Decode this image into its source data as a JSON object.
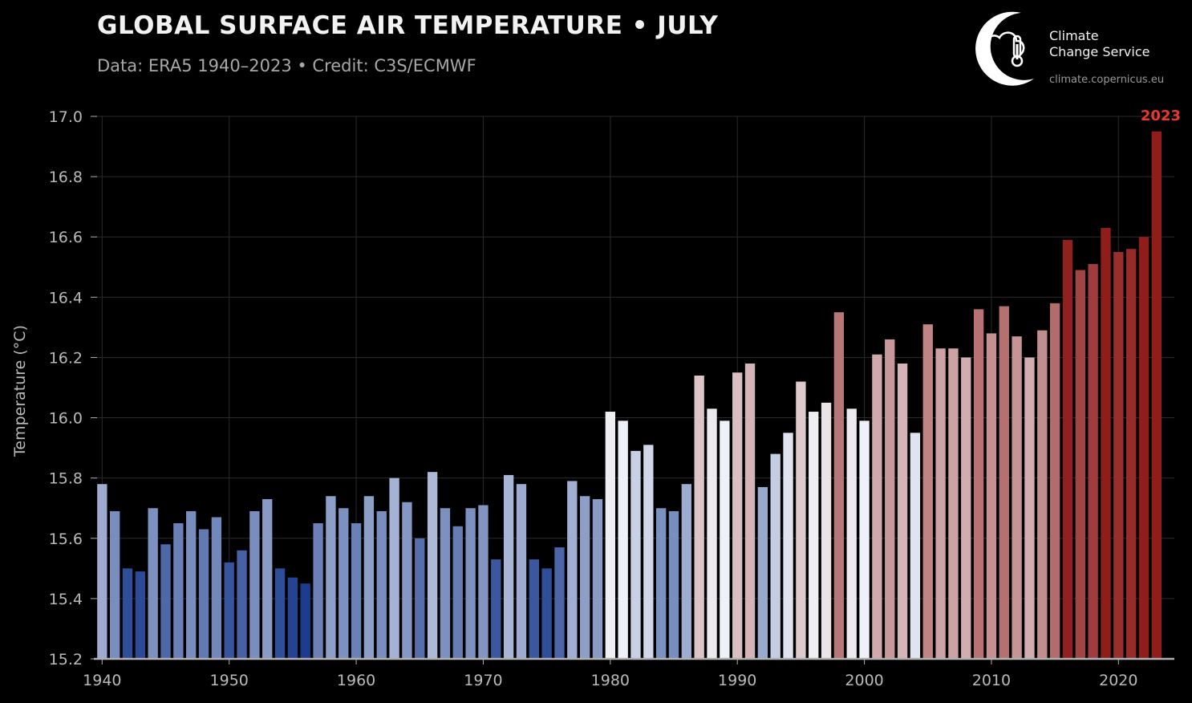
{
  "header": {
    "title": "GLOBAL SURFACE AIR TEMPERATURE • JULY",
    "subtitle": "Data: ERA5 1940–2023 • Credit: C3S/ECMWF"
  },
  "logo": {
    "name": "Climate\nChange Service",
    "url": "climate.copernicus.eu",
    "icon": "cloud-thermometer-icon"
  },
  "chart_data": {
    "type": "bar",
    "title": "GLOBAL SURFACE AIR TEMPERATURE • JULY",
    "subtitle": "Data: ERA5 1940–2023 • Credit: C3S/ECMWF",
    "ylabel": "Temperature (°C)",
    "xlabel": "",
    "ylim": [
      15.2,
      17.0
    ],
    "xlim": [
      1939.6,
      2024.4
    ],
    "yticks": [
      15.2,
      15.4,
      15.6,
      15.8,
      16.0,
      16.2,
      16.4,
      16.6,
      16.8,
      17.0
    ],
    "ytick_labels": [
      "15.2",
      "15.4",
      "15.6",
      "15.8",
      "16.0",
      "16.2",
      "16.4",
      "16.6",
      "16.8",
      "17.0"
    ],
    "xticks": [
      1940,
      1950,
      1960,
      1970,
      1980,
      1990,
      2000,
      2010,
      2020
    ],
    "xtick_labels": [
      "1940",
      "1950",
      "1960",
      "1970",
      "1980",
      "1990",
      "2000",
      "2010",
      "2020"
    ],
    "grid": true,
    "highlight": {
      "x": 2023,
      "label": "2023",
      "color": "#e8392a"
    },
    "colors": {
      "background": "#000000",
      "grid": "#2a2a2a",
      "axis": "#b0b0b0"
    },
    "color_scale": {
      "type": "diverging",
      "domain": [
        15.45,
        16.0,
        16.6
      ],
      "range": [
        "#1c3d8f",
        "#f2f5fa",
        "#8f1d1a"
      ]
    },
    "x": [
      1940,
      1941,
      1942,
      1943,
      1944,
      1945,
      1946,
      1947,
      1948,
      1949,
      1950,
      1951,
      1952,
      1953,
      1954,
      1955,
      1956,
      1957,
      1958,
      1959,
      1960,
      1961,
      1962,
      1963,
      1964,
      1965,
      1966,
      1967,
      1968,
      1969,
      1970,
      1971,
      1972,
      1973,
      1974,
      1975,
      1976,
      1977,
      1978,
      1979,
      1980,
      1981,
      1982,
      1983,
      1984,
      1985,
      1986,
      1987,
      1988,
      1989,
      1990,
      1991,
      1992,
      1993,
      1994,
      1995,
      1996,
      1997,
      1998,
      1999,
      2000,
      2001,
      2002,
      2003,
      2004,
      2005,
      2006,
      2007,
      2008,
      2009,
      2010,
      2011,
      2012,
      2013,
      2014,
      2015,
      2016,
      2017,
      2018,
      2019,
      2020,
      2021,
      2022,
      2023
    ],
    "values": [
      15.78,
      15.69,
      15.5,
      15.49,
      15.7,
      15.58,
      15.65,
      15.69,
      15.63,
      15.67,
      15.52,
      15.56,
      15.69,
      15.73,
      15.5,
      15.47,
      15.45,
      15.65,
      15.74,
      15.7,
      15.65,
      15.74,
      15.69,
      15.8,
      15.72,
      15.6,
      15.82,
      15.7,
      15.64,
      15.7,
      15.71,
      15.53,
      15.81,
      15.78,
      15.53,
      15.5,
      15.57,
      15.79,
      15.74,
      15.73,
      16.02,
      15.99,
      15.89,
      15.91,
      15.7,
      15.69,
      15.78,
      16.14,
      16.03,
      15.99,
      16.15,
      16.18,
      15.77,
      15.88,
      15.95,
      16.12,
      16.02,
      16.05,
      16.35,
      16.03,
      15.99,
      16.21,
      16.26,
      16.18,
      15.95,
      16.31,
      16.23,
      16.23,
      16.2,
      16.36,
      16.28,
      16.37,
      16.27,
      16.2,
      16.29,
      16.38,
      16.59,
      16.49,
      16.51,
      16.63,
      16.55,
      16.56,
      16.6,
      16.95
    ]
  }
}
